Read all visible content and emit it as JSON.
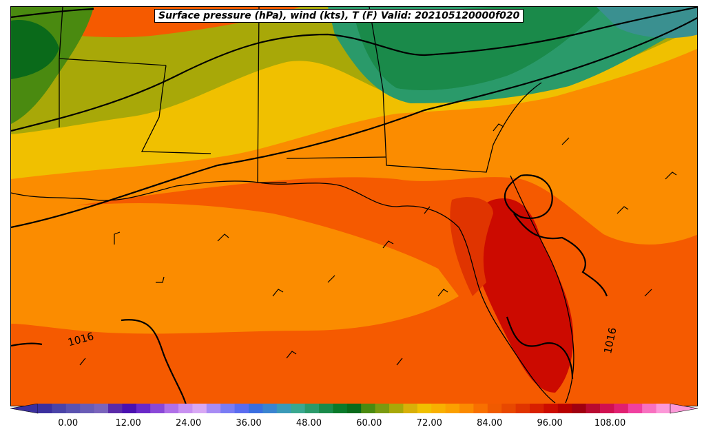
{
  "title": "Surface pressure (hPa), wind (kts), T (F) Valid: 202105120000f020",
  "isobar_labels": [
    "1016",
    "1016"
  ],
  "colorbar": {
    "tick_labels": [
      "0.00",
      "12.00",
      "24.00",
      "36.00",
      "48.00",
      "60.00",
      "72.00",
      "84.00",
      "96.00",
      "108.00"
    ],
    "min_value": -6,
    "max_value": 120,
    "colors": [
      "#3b2f9e",
      "#4a43a8",
      "#5a52b0",
      "#6a5cb6",
      "#7a64bc",
      "#5a2aa8",
      "#4a10b0",
      "#6a28c8",
      "#8a48d8",
      "#b070e8",
      "#c890f0",
      "#d8a8f4",
      "#a88cf4",
      "#7a7cf4",
      "#5a6cf0",
      "#3a6ee0",
      "#3a84d0",
      "#3a9ab8",
      "#3aa890",
      "#2a9a6a",
      "#1a8a4a",
      "#0a7a2a",
      "#0a6a1a",
      "#4a8a10",
      "#7a9a10",
      "#a8a808",
      "#d8b008",
      "#f0c000",
      "#f8b000",
      "#fba000",
      "#fb8a00",
      "#f87000",
      "#f05a00",
      "#e84800",
      "#e03400",
      "#d82000",
      "#cc0c00",
      "#b80000",
      "#a00010",
      "#b80a30",
      "#d01050",
      "#e02070",
      "#f040a0",
      "#f870c0",
      "#fc98d8"
    ]
  },
  "legend_colors": {
    "warm_orange": "#fb8c00",
    "deep_orange": "#f55a00",
    "red_hot": "#cc0a00",
    "yellow": "#f0c000",
    "olive": "#a8a808",
    "green": "#1a8a4a",
    "dark_green": "#0a6a1a",
    "teal": "#3a9090"
  }
}
